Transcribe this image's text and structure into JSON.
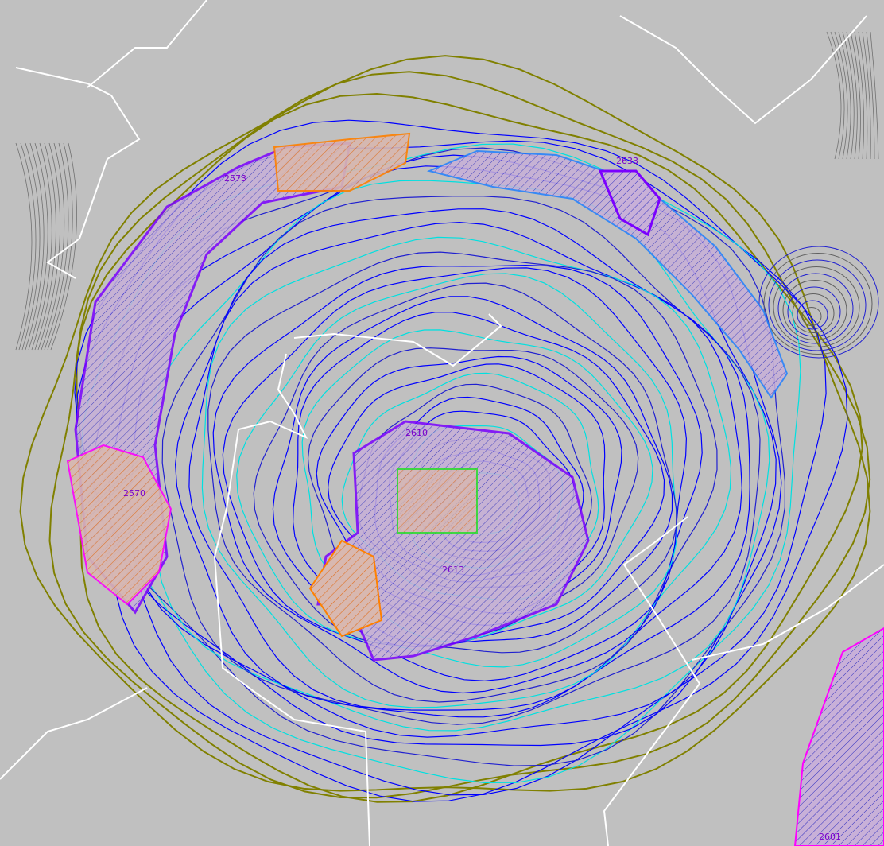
{
  "map": {
    "labels": [
      {
        "text": "2573"
      },
      {
        "text": "2633"
      },
      {
        "text": "2570"
      },
      {
        "text": "2610"
      },
      {
        "text": "2613"
      },
      {
        "text": "2601"
      }
    ]
  }
}
